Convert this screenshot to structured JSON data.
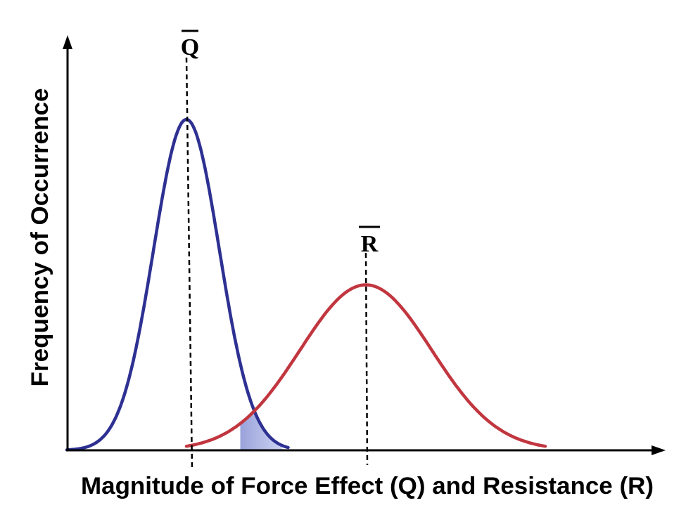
{
  "chart_data": {
    "type": "line",
    "title": "",
    "xlabel": "Magnitude of Force Effect (Q) and Resistance (R)",
    "ylabel": "Frequency of Occurrence",
    "xlim": [
      0,
      10
    ],
    "ylim": [
      0,
      1.1
    ],
    "grid": false,
    "legend": "none",
    "series": [
      {
        "name": "Q",
        "label": "Q",
        "mean": 2.0,
        "sd": 0.55,
        "peak": 1.0,
        "x_range": [
          0.0,
          3.7
        ],
        "color": "#2e3192"
      },
      {
        "name": "R",
        "label": "R",
        "mean": 5.0,
        "sd": 1.1,
        "peak": 0.5,
        "x_range": [
          2.0,
          8.0
        ],
        "color": "#c1363f"
      }
    ],
    "mean_lines": [
      {
        "series": "Q",
        "label": "Q",
        "x": 2.0
      },
      {
        "series": "R",
        "label": "R",
        "x": 5.0
      }
    ],
    "overlap_region": {
      "x_range": [
        2.9,
        3.6
      ],
      "color": "#2e3192"
    }
  }
}
